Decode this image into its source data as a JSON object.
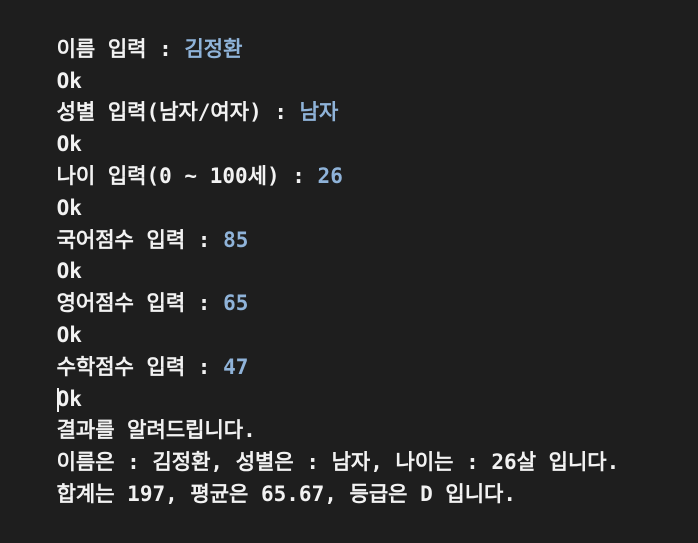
{
  "colors": {
    "background": "#1e1e1e",
    "text": "#f2f2f2",
    "input": "#8fb3d9"
  },
  "console": {
    "lines": [
      {
        "prompt": "이름 입력 : ",
        "input": "김정환"
      },
      {
        "output": "Ok"
      },
      {
        "prompt": "성별 입력(남자/여자) : ",
        "input": "남자"
      },
      {
        "output": "Ok"
      },
      {
        "prompt": "나이 입력(0 ~ 100세) : ",
        "input": "26"
      },
      {
        "output": "Ok"
      },
      {
        "prompt": "국어점수 입력 : ",
        "input": "85"
      },
      {
        "output": "Ok"
      },
      {
        "prompt": "영어점수 입력 : ",
        "input": "65"
      },
      {
        "output": "Ok"
      },
      {
        "prompt": "수학점수 입력 : ",
        "input": "47"
      },
      {
        "output": "Ok"
      },
      {
        "output": "결과를 알려드립니다."
      },
      {
        "output": "이름은 : 김정환, 성별은 : 남자, 나이는 : 26살 입니다."
      },
      {
        "output": "합계는 197, 평균은 65.67, 등급은 D 입니다."
      }
    ]
  }
}
